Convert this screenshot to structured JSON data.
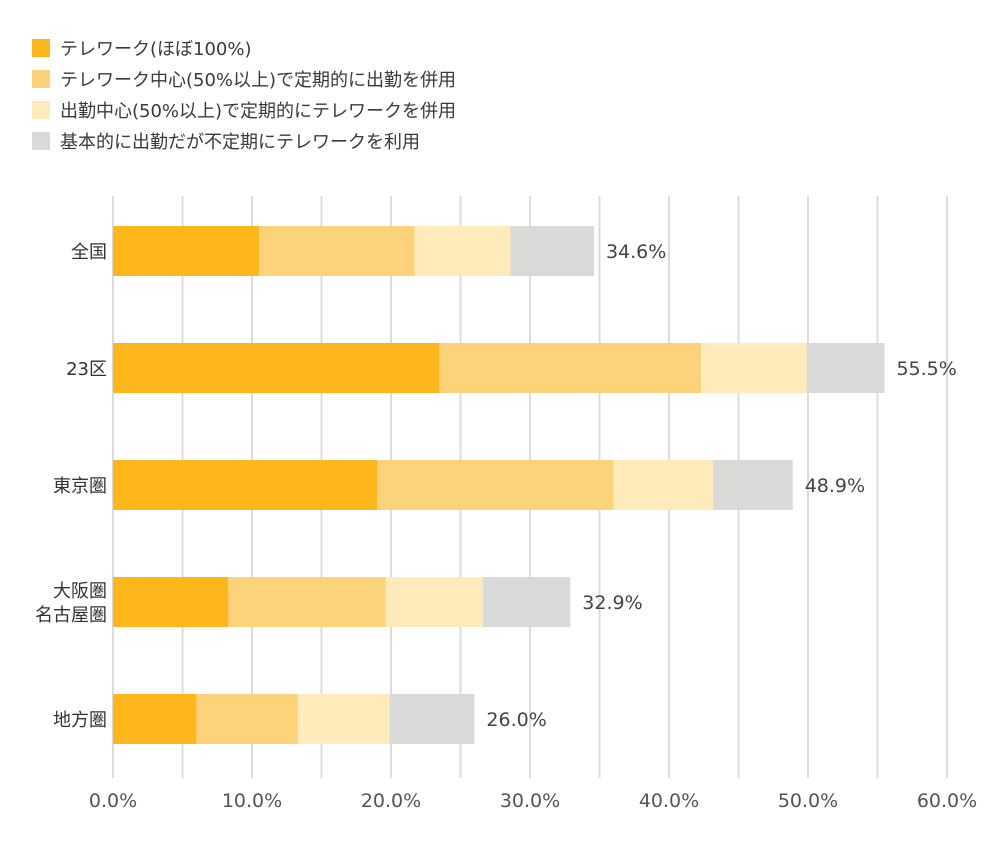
{
  "chart_data": {
    "type": "bar",
    "orientation": "horizontal",
    "stacked": true,
    "categories": [
      "全国",
      "23区",
      "東京圏",
      "大阪圏\n名古屋圏",
      "地方圏"
    ],
    "series": [
      {
        "name": "テレワーク(ほぼ100%)",
        "color": "#FDB71C",
        "values": [
          10.5,
          23.5,
          19.0,
          8.3,
          6.0
        ]
      },
      {
        "name": "テレワーク中心(50%以上)で定期的に出勤を併用",
        "color": "#FDD37A",
        "values": [
          11.2,
          18.8,
          17.0,
          11.3,
          7.3
        ]
      },
      {
        "name": "出勤中心(50%以上)で定期的にテレワークを併用",
        "color": "#FEEABA",
        "values": [
          6.9,
          7.6,
          7.2,
          7.0,
          6.6
        ]
      },
      {
        "name": "基本的に出勤だが不定期にテレワークを利用",
        "color": "#D9D9D7",
        "values": [
          6.0,
          5.6,
          5.7,
          6.3,
          6.1
        ]
      }
    ],
    "totals": [
      "34.6%",
      "55.5%",
      "48.9%",
      "32.9%",
      "26.0%"
    ],
    "xticks": [
      "0.0%",
      "10.0%",
      "20.0%",
      "30.0%",
      "40.0%",
      "50.0%",
      "60.0%"
    ],
    "xlim": [
      0,
      60
    ],
    "grid": true,
    "legend": "top-left",
    "title": "",
    "xlabel": "",
    "ylabel": ""
  }
}
